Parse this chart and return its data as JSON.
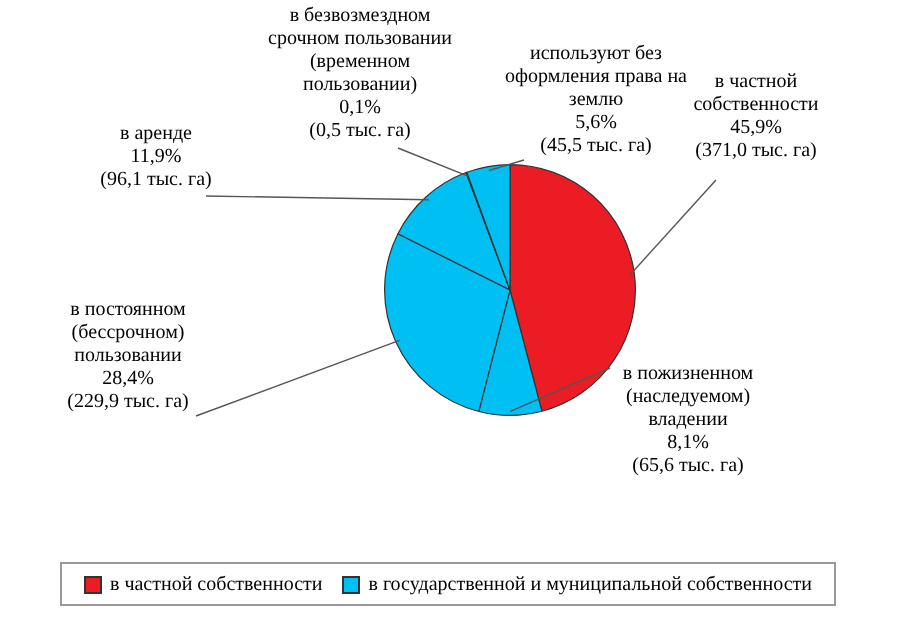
{
  "chart_data": {
    "type": "pie",
    "categories": [
      "в частной собственности",
      "в пожизненном (наследуемом) владении",
      "в постоянном (бессрочном) пользовании",
      "в аренде",
      "в безвозмездном срочном пользовании (временном пользовании)",
      "используют без оформления права на землю"
    ],
    "values": [
      45.9,
      8.1,
      28.4,
      11.9,
      0.1,
      5.6
    ],
    "colors": [
      "#ec1c24",
      "#00bff3",
      "#00bff3",
      "#00bff3",
      "#00bff3",
      "#00bff3"
    ],
    "value_labels": [
      "45,9%\n(371,0 тыс. га)",
      "8,1%\n(65,6 тыс. га)",
      "28,4%\n(229,9 тыс. га)",
      "11,9%\n(96,1 тыс. га)",
      "0,1%\n(0,5 тыс. га)",
      "5,6%\n(45,5 тыс. га)"
    ],
    "annotations": [
      "в частной собственности",
      "в государственной и муниципальной собственности"
    ]
  }
}
